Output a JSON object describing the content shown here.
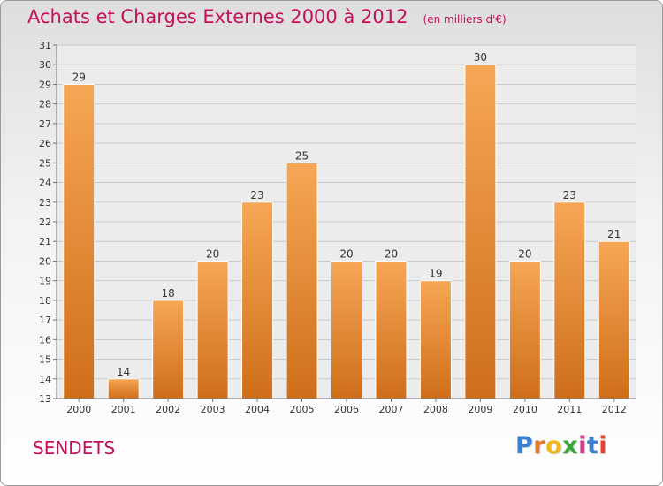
{
  "header": {
    "title": "Achats et Charges Externes 2000 à 2012",
    "unit": "(en milliers d'€)"
  },
  "commune": "SENDETS",
  "logo": {
    "text": "Proxiti",
    "letter_colors": [
      "#3a7fd0",
      "#e8762a",
      "#f0b818",
      "#3aa63a",
      "#d43a8a",
      "#3a7fd0",
      "#e84030"
    ]
  },
  "colors": {
    "accent": "#c4105a",
    "bar_top": "#f6a755",
    "bar_bottom": "#cf6e1a",
    "grid": "#c8c8c8"
  },
  "chart_data": {
    "type": "bar",
    "title": "Achats et Charges Externes 2000 à 2012",
    "subtitle": "(en milliers d'€)",
    "categories": [
      "2000",
      "2001",
      "2002",
      "2003",
      "2004",
      "2005",
      "2006",
      "2007",
      "2008",
      "2009",
      "2010",
      "2011",
      "2012"
    ],
    "values": [
      29,
      14,
      18,
      20,
      23,
      25,
      20,
      20,
      19,
      30,
      20,
      23,
      21
    ],
    "ylim": [
      13,
      31
    ],
    "yticks": [
      13,
      14,
      15,
      16,
      17,
      18,
      19,
      20,
      21,
      22,
      23,
      24,
      25,
      26,
      27,
      28,
      29,
      30,
      31
    ],
    "grid": true,
    "data_labels": true
  }
}
